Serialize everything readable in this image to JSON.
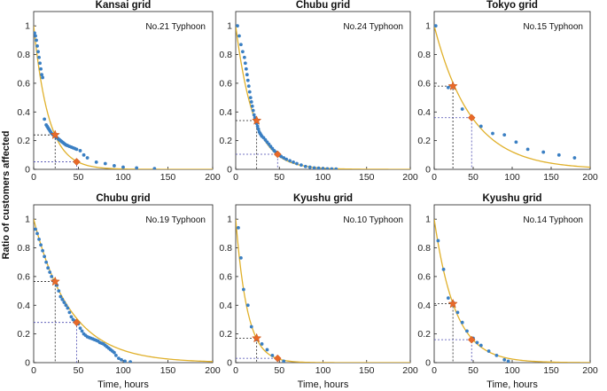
{
  "figure": {
    "ylabel": "Ratio of customers affected",
    "xlabel": "Time, hours"
  },
  "colors": {
    "data_points": "#3a7fc3",
    "fit_curve": "#e0b02a",
    "marker_24h": "#e8692a",
    "marker_48h": "#e8692a",
    "guide_black": "#222222",
    "guide_blue": "#4a4ab0"
  },
  "chart_data": [
    {
      "type": "scatter",
      "title": "Kansai grid",
      "annotation": "No.21 Typhoon",
      "xlim": [
        0,
        200
      ],
      "ylim": [
        0,
        1.1
      ],
      "xticks": [
        0,
        50,
        100,
        150,
        200
      ],
      "yticks": [
        0,
        0.2,
        0.4,
        0.6,
        0.8,
        1
      ],
      "fit_decay_rate": 0.06,
      "points_x": [
        1,
        2,
        3,
        4,
        5,
        6,
        7,
        8,
        9,
        10,
        12,
        14,
        15,
        16,
        17,
        18,
        19,
        20,
        21,
        22,
        23,
        24,
        25,
        26,
        27,
        28,
        29,
        30,
        31,
        32,
        33,
        34,
        35,
        36,
        37,
        38,
        40,
        42,
        44,
        46,
        48,
        52,
        56,
        60,
        70,
        80,
        90,
        100,
        115,
        135
      ],
      "points_y": [
        0.95,
        0.93,
        0.9,
        0.86,
        0.82,
        0.78,
        0.74,
        0.7,
        0.66,
        0.64,
        0.35,
        0.31,
        0.3,
        0.29,
        0.28,
        0.27,
        0.26,
        0.25,
        0.245,
        0.24,
        0.235,
        0.23,
        0.225,
        0.22,
        0.215,
        0.21,
        0.205,
        0.2,
        0.195,
        0.19,
        0.185,
        0.18,
        0.175,
        0.17,
        0.168,
        0.165,
        0.16,
        0.155,
        0.15,
        0.145,
        0.14,
        0.13,
        0.1,
        0.08,
        0.05,
        0.04,
        0.025,
        0.015,
        0.01,
        0.005
      ],
      "marker_24h": [
        24,
        0.24
      ],
      "marker_48h": [
        48,
        0.053
      ]
    },
    {
      "type": "scatter",
      "title": "Chubu grid",
      "annotation": "No.24 Typhoon",
      "xlim": [
        0,
        200
      ],
      "ylim": [
        0,
        1.1
      ],
      "xticks": [
        0,
        50,
        100,
        150,
        200
      ],
      "yticks": [
        0,
        0.2,
        0.4,
        0.6,
        0.8,
        1
      ],
      "fit_decay_rate": 0.048,
      "points_x": [
        2,
        4,
        6,
        8,
        10,
        11,
        12,
        13,
        14,
        15,
        16,
        17,
        18,
        19,
        20,
        21,
        22,
        23,
        24,
        25,
        26,
        27,
        28,
        29,
        30,
        32,
        34,
        36,
        38,
        40,
        42,
        44,
        46,
        48,
        50,
        52,
        55,
        58,
        62,
        66,
        70,
        75,
        80,
        85,
        90,
        95,
        100,
        105,
        110,
        115
      ],
      "points_y": [
        1.0,
        0.93,
        0.87,
        0.82,
        0.78,
        0.74,
        0.7,
        0.66,
        0.62,
        0.58,
        0.54,
        0.5,
        0.47,
        0.44,
        0.41,
        0.38,
        0.36,
        0.34,
        0.32,
        0.3,
        0.28,
        0.26,
        0.25,
        0.24,
        0.23,
        0.22,
        0.205,
        0.19,
        0.175,
        0.16,
        0.145,
        0.13,
        0.12,
        0.11,
        0.1,
        0.09,
        0.08,
        0.07,
        0.06,
        0.05,
        0.04,
        0.03,
        0.02,
        0.015,
        0.01,
        0.008,
        0.005,
        0.004,
        0.003,
        0.002
      ],
      "marker_24h": [
        24,
        0.34
      ],
      "marker_48h": [
        48,
        0.105
      ]
    },
    {
      "type": "scatter",
      "title": "Tokyo grid",
      "annotation": "No.15 Typhoon",
      "xlim": [
        0,
        200
      ],
      "ylim": [
        0,
        1.1
      ],
      "xticks": [
        0,
        50,
        100,
        150,
        200
      ],
      "yticks": [
        0,
        0.2,
        0.4,
        0.6,
        0.8,
        1
      ],
      "fit_decay_rate": 0.021,
      "points_x": [
        2,
        18,
        36,
        60,
        75,
        90,
        105,
        120,
        140,
        160,
        180
      ],
      "points_y": [
        1.0,
        0.57,
        0.42,
        0.3,
        0.25,
        0.24,
        0.19,
        0.14,
        0.12,
        0.1,
        0.08
      ],
      "marker_24h": [
        24,
        0.58
      ],
      "marker_48h": [
        48,
        0.36
      ]
    },
    {
      "type": "scatter",
      "title": "Chubu grid",
      "annotation": "No.19 Typhoon",
      "xlim": [
        0,
        200
      ],
      "ylim": [
        0,
        1.1
      ],
      "xticks": [
        0,
        50,
        100,
        150,
        200
      ],
      "yticks": [
        0,
        0.2,
        0.4,
        0.6,
        0.8,
        1
      ],
      "fit_decay_rate": 0.0245,
      "points_x": [
        2,
        4,
        6,
        8,
        10,
        12,
        14,
        16,
        18,
        20,
        22,
        24,
        26,
        28,
        30,
        32,
        34,
        36,
        38,
        40,
        42,
        44,
        46,
        48,
        50,
        52,
        54,
        56,
        58,
        60,
        62,
        64,
        66,
        68,
        70,
        72,
        74,
        76,
        78,
        80,
        82,
        84,
        86,
        88,
        90,
        92,
        95,
        98,
        102,
        108
      ],
      "points_y": [
        0.93,
        0.9,
        0.86,
        0.82,
        0.78,
        0.74,
        0.7,
        0.66,
        0.63,
        0.6,
        0.57,
        0.56,
        0.54,
        0.5,
        0.46,
        0.44,
        0.42,
        0.4,
        0.38,
        0.35,
        0.32,
        0.3,
        0.29,
        0.28,
        0.27,
        0.24,
        0.22,
        0.2,
        0.19,
        0.18,
        0.175,
        0.17,
        0.165,
        0.16,
        0.155,
        0.15,
        0.14,
        0.135,
        0.13,
        0.12,
        0.11,
        0.1,
        0.09,
        0.08,
        0.07,
        0.05,
        0.03,
        0.02,
        0.01,
        0.005
      ],
      "marker_24h": [
        24,
        0.565
      ],
      "marker_48h": [
        48,
        0.28
      ]
    },
    {
      "type": "scatter",
      "title": "Kyushu grid",
      "annotation": "No.10 Typhoon",
      "xlim": [
        0,
        200
      ],
      "ylim": [
        0,
        1.1
      ],
      "xticks": [
        0,
        50,
        100,
        150,
        200
      ],
      "yticks": [
        0,
        0.2,
        0.4,
        0.6,
        0.8,
        1
      ],
      "fit_decay_rate": 0.075,
      "points_x": [
        3,
        6,
        9,
        14,
        18,
        24,
        30,
        36,
        42,
        48,
        55
      ],
      "points_y": [
        0.94,
        0.73,
        0.51,
        0.4,
        0.25,
        0.16,
        0.13,
        0.09,
        0.05,
        0.03,
        0.01
      ],
      "marker_24h": [
        24,
        0.17
      ],
      "marker_48h": [
        48,
        0.03
      ]
    },
    {
      "type": "scatter",
      "title": "Kyushu grid",
      "annotation": "No.14 Typhoon",
      "xlim": [
        0,
        200
      ],
      "ylim": [
        0,
        1.1
      ],
      "xticks": [
        0,
        50,
        100,
        150,
        200
      ],
      "yticks": [
        0,
        0.2,
        0.4,
        0.6,
        0.8,
        1
      ],
      "fit_decay_rate": 0.037,
      "points_x": [
        5,
        12,
        18,
        24,
        30,
        36,
        42,
        50,
        55,
        60,
        70,
        80,
        90,
        95
      ],
      "points_y": [
        0.85,
        0.65,
        0.45,
        0.42,
        0.35,
        0.28,
        0.22,
        0.17,
        0.14,
        0.12,
        0.08,
        0.05,
        0.02,
        0.01
      ],
      "marker_24h": [
        24,
        0.41
      ],
      "marker_48h": [
        48,
        0.16
      ]
    }
  ]
}
